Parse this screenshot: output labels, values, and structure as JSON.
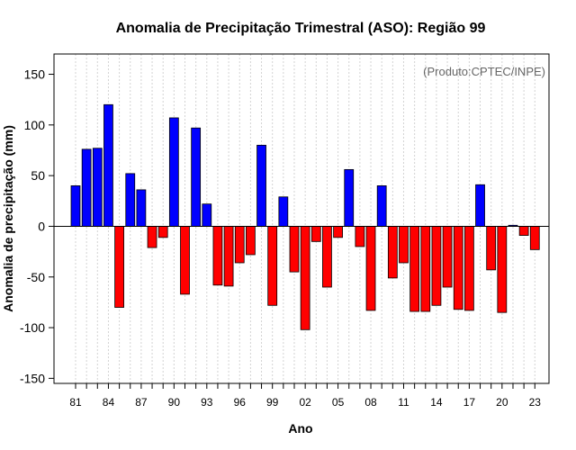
{
  "chart_data": {
    "type": "bar",
    "title": "Anomalia de Precipitação Trimestral (ASO): Região 99",
    "xlabel": "Ano",
    "ylabel": "Anomalia de precipitação (mm)",
    "credit": "(Produto:CPTEC/INPE)",
    "ylim": [
      -155,
      170
    ],
    "yticks": [
      -150,
      -100,
      -50,
      0,
      50,
      100,
      150
    ],
    "grid": true,
    "years": [
      1981,
      1982,
      1983,
      1984,
      1985,
      1986,
      1987,
      1988,
      1989,
      1990,
      1991,
      1992,
      1993,
      1994,
      1995,
      1996,
      1997,
      1998,
      1999,
      2000,
      2001,
      2002,
      2003,
      2004,
      2005,
      2006,
      2007,
      2008,
      2009,
      2010,
      2011,
      2012,
      2013,
      2014,
      2015,
      2016,
      2017,
      2018,
      2019,
      2020,
      2021,
      2022,
      2023
    ],
    "values": [
      40,
      76,
      77,
      120,
      -80,
      52,
      36,
      -21,
      -11,
      107,
      -67,
      97,
      22,
      -58,
      -59,
      -36,
      -28,
      80,
      -78,
      29,
      -45,
      -102,
      -15,
      -60,
      -11,
      56,
      -20,
      -83,
      40,
      -51,
      -36,
      -84,
      -84,
      -78,
      -60,
      -82,
      -83,
      41,
      -43,
      -85,
      1,
      -9,
      -23
    ],
    "tick_labels": [
      "81",
      "84",
      "87",
      "90",
      "93",
      "96",
      "99",
      "02",
      "05",
      "08",
      "11",
      "14",
      "17",
      "20",
      "23"
    ],
    "tick_years": [
      1981,
      1984,
      1987,
      1990,
      1993,
      1996,
      1999,
      2002,
      2005,
      2008,
      2011,
      2014,
      2017,
      2020,
      2023
    ],
    "positive_color": "#0000ff",
    "negative_color": "#ff0000",
    "grid_color": "#d3d3d3"
  }
}
